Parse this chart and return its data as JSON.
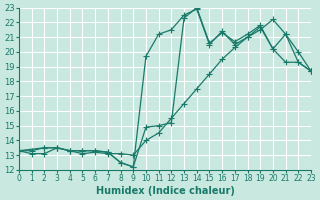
{
  "bg_color": "#c8e8e0",
  "grid_color": "#ffffff",
  "line_color": "#1a7a6a",
  "xlabel": "Humidex (Indice chaleur)",
  "xlim": [
    0,
    23
  ],
  "ylim": [
    12,
    23
  ],
  "xticks": [
    0,
    1,
    2,
    3,
    4,
    5,
    6,
    7,
    8,
    9,
    10,
    11,
    12,
    13,
    14,
    15,
    16,
    17,
    18,
    19,
    20,
    21,
    22,
    23
  ],
  "yticks": [
    12,
    13,
    14,
    15,
    16,
    17,
    18,
    19,
    20,
    21,
    22,
    23
  ],
  "line1_x": [
    0,
    1,
    2,
    3,
    4,
    5,
    6,
    7,
    8,
    9,
    10,
    11,
    12,
    13,
    14,
    15,
    16,
    17,
    18,
    19,
    20,
    21,
    22,
    23
  ],
  "line1_y": [
    13.3,
    13.3,
    13.5,
    13.5,
    13.3,
    13.3,
    13.3,
    13.2,
    12.5,
    12.2,
    14.9,
    15.0,
    15.2,
    22.3,
    23.0,
    20.6,
    21.3,
    20.7,
    21.2,
    21.8,
    20.2,
    19.3,
    19.3,
    18.7
  ],
  "line2_x": [
    0,
    1,
    2,
    3,
    4,
    5,
    6,
    7,
    8,
    9,
    10,
    11,
    12,
    13,
    14,
    15,
    16,
    17,
    18,
    19,
    20,
    21,
    22,
    23
  ],
  "line2_y": [
    13.3,
    13.1,
    13.1,
    13.5,
    13.3,
    13.1,
    13.2,
    13.1,
    13.1,
    13.0,
    14.0,
    14.5,
    15.5,
    16.5,
    17.5,
    18.5,
    19.5,
    20.3,
    21.0,
    21.5,
    22.2,
    21.2,
    20.0,
    18.7
  ],
  "line3_x": [
    0,
    2,
    3,
    4,
    5,
    6,
    7,
    8,
    9,
    10,
    11,
    12,
    13,
    14,
    15,
    16,
    17,
    18,
    19,
    20,
    21,
    22,
    23
  ],
  "line3_y": [
    13.3,
    13.5,
    13.5,
    13.3,
    13.3,
    13.3,
    13.2,
    12.5,
    12.2,
    19.7,
    21.2,
    21.5,
    22.5,
    22.9,
    20.5,
    21.4,
    20.5,
    21.0,
    21.7,
    20.2,
    21.2,
    19.3,
    18.7
  ]
}
